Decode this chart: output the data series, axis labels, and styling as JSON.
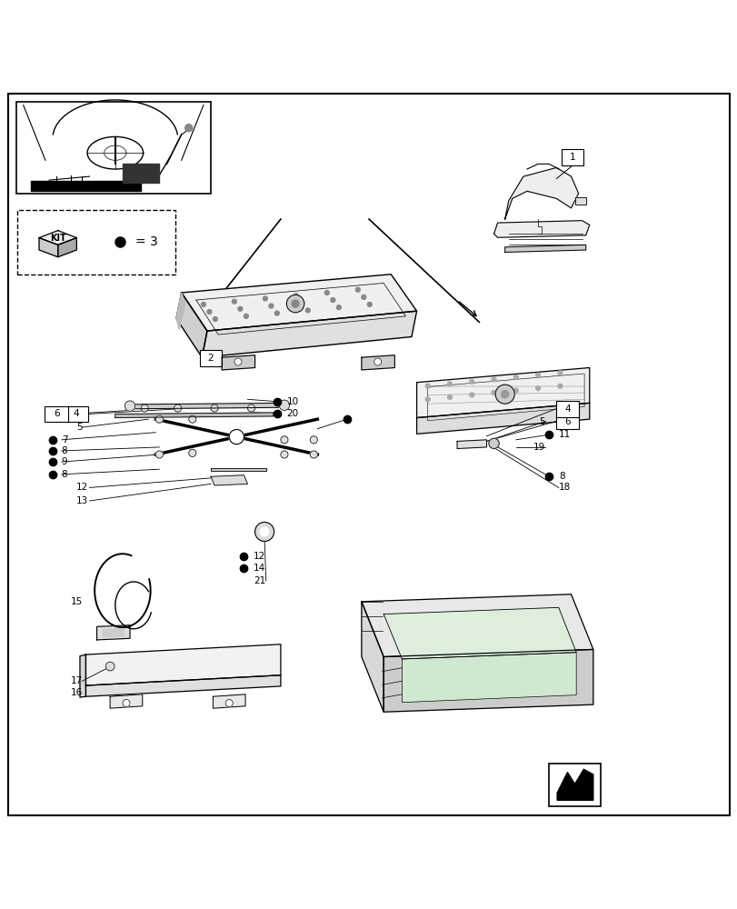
{
  "bg_color": "#ffffff",
  "border_color": "#000000",
  "fig_width": 8.12,
  "fig_height": 10.0,
  "dpi": 100
}
